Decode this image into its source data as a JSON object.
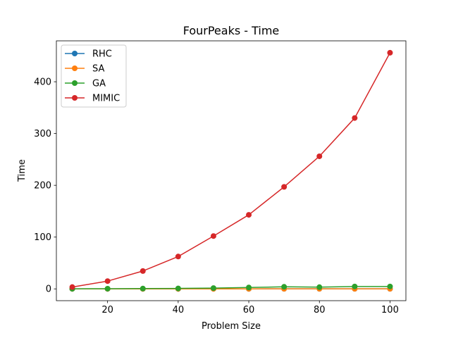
{
  "chart_data": {
    "type": "line",
    "title": "FourPeaks - Time",
    "xlabel": "Problem Size",
    "ylabel": "Time",
    "xlim": [
      5.5,
      104.5
    ],
    "ylim": [
      -22.8,
      479.0
    ],
    "xticks": [
      20,
      40,
      60,
      80,
      100
    ],
    "yticks": [
      0,
      100,
      200,
      300,
      400
    ],
    "grid": false,
    "legend_position": "top-left",
    "x": [
      10,
      20,
      30,
      40,
      50,
      60,
      70,
      80,
      90,
      100
    ],
    "series": [
      {
        "name": "RHC",
        "color": "#1f77b4",
        "values": [
          0.01,
          0.02,
          0.03,
          0.04,
          0.05,
          0.06,
          0.07,
          0.08,
          0.09,
          0.1
        ]
      },
      {
        "name": "SA",
        "color": "#ff7f0e",
        "values": [
          0.01,
          0.02,
          0.03,
          0.04,
          0.05,
          0.06,
          0.08,
          0.09,
          0.1,
          0.12
        ]
      },
      {
        "name": "GA",
        "color": "#2ca02c",
        "values": [
          0.2,
          0.4,
          0.6,
          0.9,
          1.5,
          2.7,
          4.0,
          3.3,
          4.6,
          4.6
        ]
      },
      {
        "name": "MIMIC",
        "color": "#d62728",
        "values": [
          3.5,
          15.0,
          34.5,
          62.5,
          102.0,
          143.0,
          197.0,
          256.0,
          330.0,
          456.0
        ]
      }
    ]
  }
}
